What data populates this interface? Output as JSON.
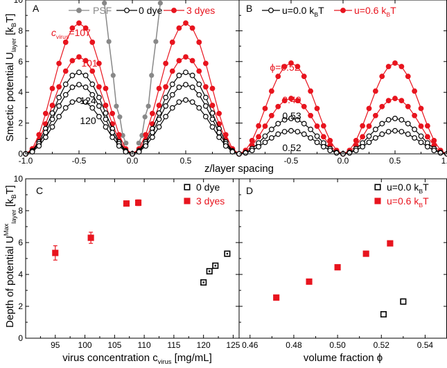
{
  "chart_data": [
    {
      "panel": "A",
      "type": "line",
      "xlabel": "z/layer spacing",
      "ylabel": "Smectic potential U",
      "ylabel_sub": "layer",
      "ylabel_unit": "[k",
      "ylabel_unit_sub": "B",
      "ylabel_unit_end": "T]",
      "xlim": [
        -1.0,
        1.0
      ],
      "ylim": [
        0,
        10
      ],
      "xticks": [
        "-1.0",
        "-0.5",
        "0.0",
        "0.5"
      ],
      "yticks": [
        "0",
        "2",
        "4",
        "6",
        "8",
        "10"
      ],
      "legend": {
        "position": "top",
        "items": [
          {
            "label": "PSF",
            "color": "#888888",
            "marker": "filled-circle"
          },
          {
            "label": "0 dye",
            "color": "#000000",
            "marker": "open-circle"
          },
          {
            "label": "3 dyes",
            "color": "#e8141e",
            "marker": "filled-circle"
          }
        ]
      },
      "psf": {
        "x": [
          -0.262,
          -0.22,
          -0.18,
          -0.15,
          -0.118,
          -0.09,
          -0.06,
          0.06,
          0.09,
          0.118,
          0.15,
          0.18,
          0.22,
          0.262
        ],
        "y": [
          9.8,
          7.3,
          5.1,
          3.1,
          2.4,
          1.2,
          0.7,
          0.7,
          1.2,
          2.4,
          3.1,
          5.1,
          7.3,
          9.8
        ]
      },
      "series": [
        {
          "style": "red",
          "label": "c",
          "label_sub": "virus",
          "label_value": "=107",
          "amplitude": 8.5
        },
        {
          "style": "red",
          "label": "101",
          "amplitude": 6.3
        },
        {
          "style": "black",
          "label": "124",
          "amplitude": 5.3
        },
        {
          "style": "black",
          "label": "",
          "amplitude": 4.5
        },
        {
          "style": "black",
          "label": "120",
          "amplitude": 3.5
        }
      ],
      "curve_shape": "U = A*(1 - cos(2*pi*z))/2, sampled every 0.0625"
    },
    {
      "panel": "B",
      "type": "line",
      "xlabel": "z/layer spacing",
      "xlim": [
        -1.0,
        1.0
      ],
      "ylim": [
        0,
        10
      ],
      "xticks": [
        "-0.5",
        "0.0",
        "0.5",
        "1.0"
      ],
      "legend": {
        "position": "top",
        "items": [
          {
            "label": "u=0.0 k",
            "label_sub": "B",
            "label_end": "T",
            "color": "#000000",
            "marker": "open-circle"
          },
          {
            "label": "u=0.6 k",
            "label_sub": "B",
            "label_end": "T",
            "color": "#e8141e",
            "marker": "filled-circle"
          }
        ]
      },
      "series": [
        {
          "style": "red",
          "label": "ϕ=0.52",
          "amplitude": 5.9
        },
        {
          "style": "red",
          "label": "0.49",
          "amplitude": 3.6
        },
        {
          "style": "black",
          "label": "0.53",
          "amplitude": 2.3
        },
        {
          "style": "black",
          "label": "0.52",
          "amplitude": 1.5
        }
      ]
    },
    {
      "panel": "C",
      "type": "scatter",
      "xlabel": "virus concentration c",
      "xlabel_sub": "virus",
      "xlabel_end": " [mg/mL]",
      "ylabel": "Depth of potential U",
      "ylabel_sup": "Max",
      "ylabel_sub": "layer",
      "ylabel_unit": " [k",
      "ylabel_unit_sub": "B",
      "ylabel_unit_end": "T]",
      "xlim": [
        90,
        126
      ],
      "ylim": [
        0,
        10
      ],
      "xticks": [
        "95",
        "100",
        "105",
        "110",
        "115",
        "120",
        "125"
      ],
      "yticks": [
        "0",
        "2",
        "4",
        "6",
        "8",
        "10"
      ],
      "legend": {
        "position": "top-right",
        "items": [
          {
            "label": "0 dye",
            "color": "#000000",
            "marker": "open-square"
          },
          {
            "label": "3 dyes",
            "color": "#e8141e",
            "marker": "filled-square"
          }
        ]
      },
      "series": [
        {
          "style": "red",
          "x": [
            95,
            101,
            107,
            109
          ],
          "y": [
            5.35,
            6.3,
            8.45,
            8.5
          ],
          "err": [
            0.45,
            0.35,
            0.12,
            0.18
          ]
        },
        {
          "style": "black",
          "x": [
            120,
            121,
            122,
            124
          ],
          "y": [
            3.5,
            4.2,
            4.55,
            5.3
          ]
        }
      ]
    },
    {
      "panel": "D",
      "type": "scatter",
      "xlabel": "volume fraction ϕ",
      "xlim": [
        0.455,
        0.55
      ],
      "ylim": [
        0,
        10
      ],
      "xticks": [
        "0.46",
        "0.48",
        "0.50",
        "0.52",
        "0.54"
      ],
      "legend": {
        "position": "top-right",
        "items": [
          {
            "label": "u=0.0 k",
            "label_sub": "B",
            "label_end": "T",
            "color": "#000000",
            "marker": "open-square"
          },
          {
            "label": "u=0.6 k",
            "label_sub": "B",
            "label_end": "T",
            "color": "#e8141e",
            "marker": "filled-square"
          }
        ]
      },
      "series": [
        {
          "style": "red",
          "x": [
            0.472,
            0.487,
            0.5,
            0.513,
            0.524
          ],
          "y": [
            2.55,
            3.55,
            4.45,
            5.3,
            5.95
          ]
        },
        {
          "style": "black",
          "x": [
            0.521,
            0.53
          ],
          "y": [
            1.5,
            2.3
          ]
        }
      ]
    }
  ]
}
